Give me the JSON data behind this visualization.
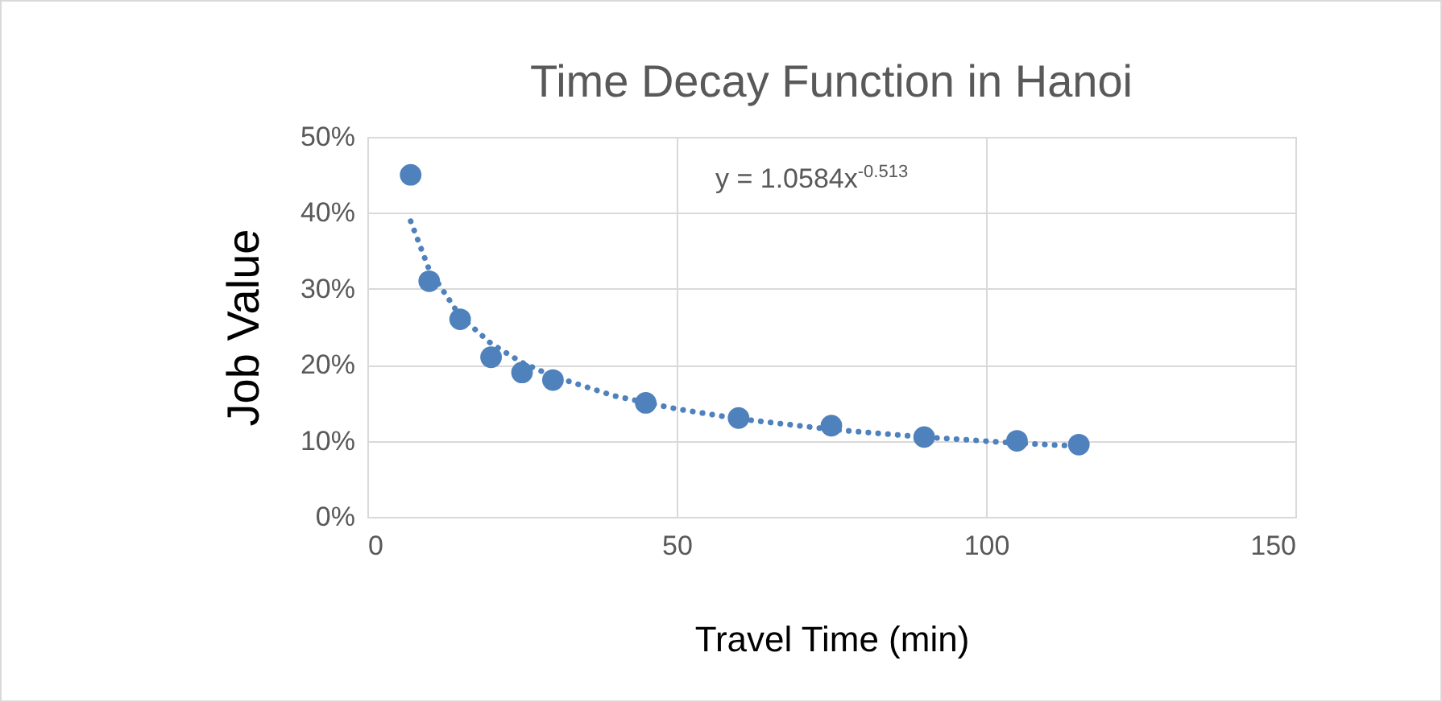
{
  "chart_data": {
    "type": "scatter",
    "title": "Time Decay Function in Hanoi",
    "xlabel": "Travel Time (min)",
    "ylabel": "Job Value",
    "annotations": [
      "y = 1.0584x$^{-0.513}$"
    ],
    "xlim": [
      0,
      150
    ],
    "xticks": [
      0,
      50,
      100,
      150
    ],
    "ylim": [
      0,
      50
    ],
    "yticks": [
      {
        "value": 0,
        "label": "0%"
      },
      {
        "value": 10,
        "label": "10%"
      },
      {
        "value": 20,
        "label": "20%"
      },
      {
        "value": 30,
        "label": "30%"
      },
      {
        "value": 40,
        "label": "40%"
      },
      {
        "value": 50,
        "label": "50%"
      }
    ],
    "grid": true,
    "series": [
      {
        "marker": "circle",
        "color": "#4f81bd",
        "x": [
          7,
          10,
          15,
          20,
          25,
          30,
          45,
          60,
          75,
          90,
          105,
          115
        ],
        "values": [
          45,
          31,
          26,
          21,
          19,
          18,
          15,
          13,
          12,
          10.5,
          10,
          9.5
        ]
      },
      {
        "type": "line",
        "marker": "none",
        "line_style": "dotted",
        "color": "#4f81bd",
        "x": [
          7,
          10,
          15,
          20,
          25,
          30,
          40,
          50,
          60,
          75,
          90,
          105,
          115
        ],
        "values": [
          38.9,
          32.5,
          26.4,
          22.8,
          20.3,
          18.5,
          15.9,
          14.2,
          12.9,
          11.5,
          10.5,
          9.7,
          9.3
        ]
      }
    ]
  }
}
